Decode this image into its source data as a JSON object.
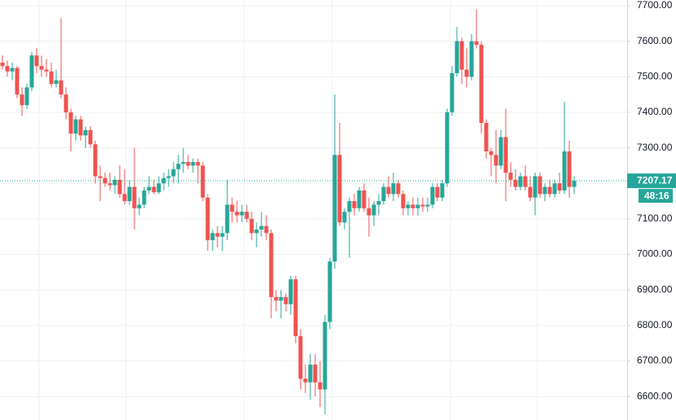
{
  "chart_data": {
    "type": "candlestick",
    "up_color": "#26a69a",
    "down_color": "#ef5350",
    "ylim": [
      6534,
      7716
    ],
    "yticks": [
      {
        "value": 6600,
        "label": "6600.00"
      },
      {
        "value": 6700,
        "label": "6700.00"
      },
      {
        "value": 6800,
        "label": "6800.00"
      },
      {
        "value": 6900,
        "label": "6900.00"
      },
      {
        "value": 7000,
        "label": "7000.00"
      },
      {
        "value": 7100,
        "label": "7100.00"
      },
      {
        "value": 7200,
        "label": "7200.00"
      },
      {
        "value": 7300,
        "label": "7300.00"
      },
      {
        "value": 7400,
        "label": "7400.00"
      },
      {
        "value": 7500,
        "label": "7500.00"
      },
      {
        "value": 7600,
        "label": "7600.00"
      },
      {
        "value": 7700,
        "label": "7700.00"
      }
    ],
    "grid": true,
    "last_price": 7207.17,
    "countdown": "48:16",
    "open": [
      7540,
      7530,
      7515,
      7525,
      7450,
      7420,
      7470,
      7560,
      7530,
      7520,
      7515,
      7480,
      7490,
      7450,
      7400,
      7340,
      7380,
      7335,
      7350,
      7310,
      7220,
      7215,
      7200,
      7195,
      7210,
      7170,
      7150,
      7190,
      7130,
      7140,
      7180,
      7190,
      7175,
      7200,
      7215,
      7220,
      7240,
      7255,
      7260,
      7250,
      7260,
      7250,
      7160,
      7040,
      7060,
      7050,
      7060,
      7140,
      7120,
      7110,
      7120,
      7100,
      7060,
      7070,
      7080,
      7060,
      6880,
      6870,
      6880,
      6860,
      6930,
      6770,
      6650,
      6640,
      6690,
      6640,
      6620,
      6810,
      6980,
      7280,
      7090,
      7120,
      7150,
      7130,
      7180,
      7130,
      7110,
      7140,
      7150,
      7190,
      7170,
      7200,
      7170,
      7130,
      7140,
      7130,
      7140,
      7135,
      7140,
      7190,
      7160,
      7200,
      7400,
      7510,
      7600,
      7520,
      7500,
      7600,
      7590,
      7370,
      7290,
      7280,
      7250,
      7330,
      7230,
      7210,
      7190,
      7220,
      7190,
      7160,
      7220,
      7170,
      7190,
      7170,
      7200,
      7180,
      7290,
      7190
    ],
    "high": [
      7560,
      7545,
      7540,
      7530,
      7470,
      7480,
      7570,
      7580,
      7560,
      7550,
      7540,
      7520,
      7665,
      7470,
      7410,
      7390,
      7390,
      7360,
      7360,
      7320,
      7250,
      7230,
      7230,
      7220,
      7250,
      7240,
      7210,
      7300,
      7160,
      7190,
      7220,
      7210,
      7220,
      7230,
      7240,
      7260,
      7280,
      7300,
      7280,
      7270,
      7270,
      7260,
      7170,
      7070,
      7080,
      7080,
      7210,
      7160,
      7150,
      7140,
      7140,
      7120,
      7090,
      7120,
      7110,
      7070,
      6900,
      6900,
      6890,
      6940,
      6940,
      6790,
      6690,
      6720,
      6720,
      6700,
      6830,
      6990,
      7450,
      7370,
      7130,
      7160,
      7170,
      7190,
      7200,
      7160,
      7150,
      7170,
      7200,
      7220,
      7230,
      7210,
      7180,
      7150,
      7160,
      7160,
      7160,
      7160,
      7200,
      7200,
      7210,
      7410,
      7530,
      7640,
      7610,
      7580,
      7620,
      7690,
      7600,
      7380,
      7300,
      7350,
      7350,
      7410,
      7260,
      7240,
      7230,
      7250,
      7220,
      7230,
      7230,
      7200,
      7210,
      7210,
      7230,
      7430,
      7320,
      7220
    ],
    "low": [
      7520,
      7500,
      7490,
      7440,
      7390,
      7410,
      7460,
      7510,
      7500,
      7500,
      7470,
      7470,
      7440,
      7380,
      7290,
      7320,
      7320,
      7300,
      7300,
      7200,
      7150,
      7190,
      7180,
      7170,
      7160,
      7140,
      7140,
      7070,
      7110,
      7130,
      7170,
      7170,
      7170,
      7180,
      7190,
      7200,
      7200,
      7230,
      7240,
      7230,
      7200,
      7150,
      7010,
      7010,
      7020,
      7010,
      7040,
      7090,
      7090,
      7090,
      7090,
      7040,
      7020,
      7050,
      7040,
      6820,
      6840,
      6820,
      6840,
      6830,
      6750,
      6620,
      6610,
      6590,
      6600,
      6570,
      6550,
      6790,
      6960,
      7080,
      7070,
      6990,
      7110,
      7120,
      7120,
      7050,
      7080,
      7110,
      7140,
      7160,
      7150,
      7160,
      7110,
      7110,
      7110,
      7110,
      7120,
      7120,
      7130,
      7150,
      7150,
      7190,
      7390,
      7500,
      7480,
      7470,
      7490,
      7580,
      7340,
      7270,
      7220,
      7200,
      7240,
      7150,
      7190,
      7180,
      7180,
      7180,
      7150,
      7110,
      7160,
      7150,
      7160,
      7160,
      7170,
      7170,
      7160,
      7170
    ],
    "close": [
      7530,
      7515,
      7525,
      7450,
      7420,
      7470,
      7560,
      7530,
      7520,
      7515,
      7480,
      7490,
      7450,
      7400,
      7340,
      7380,
      7335,
      7350,
      7310,
      7220,
      7215,
      7200,
      7195,
      7210,
      7170,
      7150,
      7190,
      7130,
      7140,
      7180,
      7190,
      7175,
      7200,
      7215,
      7220,
      7240,
      7255,
      7260,
      7250,
      7260,
      7250,
      7160,
      7040,
      7060,
      7050,
      7060,
      7140,
      7120,
      7110,
      7120,
      7100,
      7060,
      7070,
      7080,
      7060,
      6880,
      6870,
      6880,
      6860,
      6930,
      6770,
      6650,
      6640,
      6690,
      6640,
      6620,
      6810,
      6980,
      7280,
      7090,
      7120,
      7150,
      7130,
      7180,
      7130,
      7110,
      7140,
      7150,
      7190,
      7170,
      7200,
      7170,
      7130,
      7140,
      7130,
      7140,
      7135,
      7140,
      7190,
      7160,
      7200,
      7400,
      7510,
      7600,
      7520,
      7500,
      7600,
      7590,
      7370,
      7290,
      7280,
      7250,
      7330,
      7230,
      7210,
      7190,
      7220,
      7190,
      7160,
      7220,
      7170,
      7190,
      7170,
      7200,
      7180,
      7290,
      7190,
      7207.17
    ]
  }
}
